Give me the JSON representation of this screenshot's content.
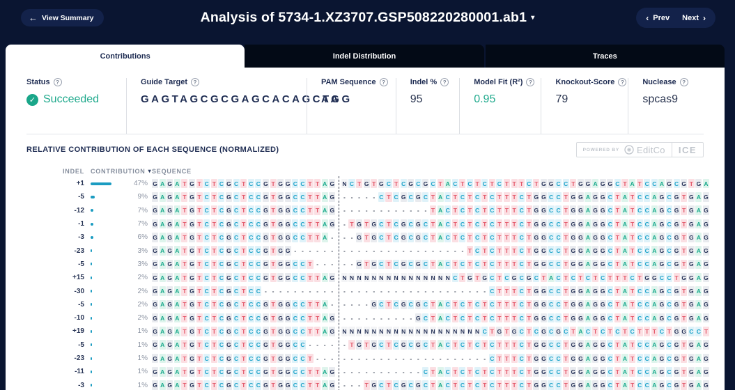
{
  "header": {
    "back_label": "View Summary",
    "title": "Analysis of 5734-1.XZ3707.GSP508220280001.ab1",
    "prev_label": "Prev",
    "next_label": "Next"
  },
  "tabs": [
    {
      "label": "Contributions",
      "active": true
    },
    {
      "label": "Indel Distribution",
      "active": false
    },
    {
      "label": "Traces",
      "active": false
    }
  ],
  "stats": [
    {
      "label": "Status",
      "value": "Succeeded"
    },
    {
      "label": "Guide Target",
      "value": "GAGTAGCGCGAGCACAGCTA"
    },
    {
      "label": "PAM Sequence",
      "value": "AGG"
    },
    {
      "label": "Indel %",
      "value": "95"
    },
    {
      "label": "Model Fit (R²)",
      "value": "0.95"
    },
    {
      "label": "Knockout-Score",
      "value": "79"
    },
    {
      "label": "Nuclease",
      "value": "spcas9"
    }
  ],
  "section": {
    "heading": "RELATIVE CONTRIBUTION OF EACH SEQUENCE (NORMALIZED)",
    "powered_by": "POWERED BY",
    "brand": "EditCo",
    "product": "ICE"
  },
  "table": {
    "col_indel": "INDEL",
    "col_contribution": "CONTRIBUTION",
    "col_sequence": "SEQUENCE",
    "rows": [
      {
        "indel": "+1",
        "pct": 47,
        "left": "GAGATGTCTCGCTCCGTGGCCTTAG",
        "right": "NCTGTGCTCGCGCTACTCTCTCTTTCTGGCCTGGAGGCTATCCAGCGTGA"
      },
      {
        "indel": "-5",
        "pct": 9,
        "left": "GAGATGTCTCGCTCCGTGGCCTTAG",
        "right": "-----CTCGCGCTACTCTCTCTTTCTGGCCTGGAGGCTATCCAGCGTGAG"
      },
      {
        "indel": "-12",
        "pct": 7,
        "left": "GAGATGTCTCGCTCCGTGGCCTTAG",
        "right": "------------TACTCTCTCTTTCTGGCCTGGAGGCTATCCAGCGTGAG"
      },
      {
        "indel": "-1",
        "pct": 7,
        "left": "GAGATGTCTCGCTCCGTGGCCTTAG",
        "right": "-TGTGCTCGCGCTACTCTCTCTTTCTGGCCTGGAGGCTATCCAGCGTGAG"
      },
      {
        "indel": "-3",
        "pct": 6,
        "left": "GAGATGTCTCGCTCCGTGGCCTTA-",
        "right": "--GTGCTCGCGCTACTCTCTCTTTCTGGCCTGGAGGCTATCCAGCGTGAG"
      },
      {
        "indel": "-23",
        "pct": 3,
        "left": "GAGATGTCTCGCTCCGTGG------",
        "right": "-----------------TCTCTTTCTGGCCTGGAGGCTATCCAGCGTGAG"
      },
      {
        "indel": "-5",
        "pct": 3,
        "left": "GAGATGTCTCGCTCCGTGGCCT---",
        "right": "--GTGCTCGCGCTACTCTCTCTTTCTGGCCTGGAGGCTATCCAGCGTGAG"
      },
      {
        "indel": "+15",
        "pct": 2,
        "left": "GAGATGTCTCGCTCCGTGGCCTTAG",
        "right": "NNNNNNNNNNNNNNNCTGTGCTCGCGCTACTCTCTCTTTCTGGCCTGGAG"
      },
      {
        "indel": "-30",
        "pct": 2,
        "left": "GAGATGTCTCGCTCC----------",
        "right": "--------------------CTTTCTGGCCTGGAGGCTATCCAGCGTGAG"
      },
      {
        "indel": "-5",
        "pct": 2,
        "left": "GAGATGTCTCGCTCCGTGGCCTTA-",
        "right": "----GCTCGCGCTACTCTCTCTTTCTGGCCTGGAGGCTATCCAGCGTGAG"
      },
      {
        "indel": "-10",
        "pct": 2,
        "left": "GAGATGTCTCGCTCCGTGGCCTTAG",
        "right": "----------GCTACTCTCTCTTTCTGGCCTGGAGGCTATCCAGCGTGAG"
      },
      {
        "indel": "+19",
        "pct": 1,
        "left": "GAGATGTCTCGCTCCGTGGCCTTAG",
        "right": "NNNNNNNNNNNNNNNNNNNCTGTGCTCGCGCTACTCTCTCTTTCTGGCCT"
      },
      {
        "indel": "-5",
        "pct": 1,
        "left": "GAGATGTCTCGCTCCGTGGCC----",
        "right": "-TGTGCTCGCGCTACTCTCTCTTTCTGGCCTGGAGGCTATCCAGCGTGAG"
      },
      {
        "indel": "-23",
        "pct": 1,
        "left": "GAGATGTCTCGCTCCGTGGCCT---",
        "right": "--------------------CTTTCTGGCCTGGAGGCTATCCAGCGTGAG"
      },
      {
        "indel": "-11",
        "pct": 1,
        "left": "GAGATGTCTCGCTCCGTGGCCTTAG",
        "right": "-----------CTACTCTCTCTTTCTGGCCTGGAGGCTATCCAGCGTGAG"
      },
      {
        "indel": "-3",
        "pct": 1,
        "left": "GAGATGTCTCGCTCCGTGGCCTTAG",
        "right": "---TGCTCGCGCTACTCTCTCTTTCTGGCCTGGAGGCTATCCAGCGTGAG"
      }
    ]
  },
  "colors": {
    "navy_bg": "#0a1531",
    "pill_bg": "#13224a",
    "tab_dark": "#030a16",
    "ink": "#1e2c52",
    "teal": "#1fa98c",
    "bar_cyan": "#1b9cc1",
    "base_a": "#19a98c",
    "base_t": "#e35668",
    "base_c": "#1fa3c9",
    "base_g": "#283459"
  }
}
